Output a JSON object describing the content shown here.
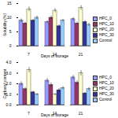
{
  "chart_data": [
    {
      "type": "bar",
      "x_label": "Days of storage",
      "y_label": "Solubility (%)",
      "categories": [
        "7",
        "14",
        "21"
      ],
      "series": [
        {
          "name": "HPC_0",
          "color": "#9999ff",
          "values": [
            9,
            8.5,
            9.5
          ],
          "errors": [
            0.6,
            0.5,
            0.6
          ]
        },
        {
          "name": "HPC_10",
          "color": "#993366",
          "values": [
            8,
            10,
            8
          ],
          "errors": [
            0.5,
            0.6,
            0.5
          ]
        },
        {
          "name": "HPC_20",
          "color": "#ffffcc",
          "values": [
            13,
            12.5,
            13.5
          ],
          "errors": [
            0.8,
            0.7,
            0.8
          ]
        },
        {
          "name": "HPC_30",
          "color": "#333399",
          "values": [
            9,
            7,
            8.5
          ],
          "errors": [
            0.5,
            0.5,
            0.5
          ]
        },
        {
          "name": "Control",
          "color": "#99ccff",
          "values": [
            10,
            9,
            7.5
          ],
          "errors": [
            0.6,
            0.5,
            0.5
          ]
        }
      ],
      "ylim": [
        0,
        15
      ],
      "yticks": [
        0,
        5,
        10,
        15
      ],
      "legend": "right"
    },
    {
      "type": "bar",
      "x_label": "Days of storage",
      "y_label": "Carbonyl content",
      "categories": [
        "7",
        "14",
        "21"
      ],
      "series": [
        {
          "name": "HPC_0",
          "color": "#9999ff",
          "values": [
            2.0,
            2.3,
            2.6
          ],
          "errors": [
            0.2,
            0.2,
            0.2
          ]
        },
        {
          "name": "HPC_10",
          "color": "#993366",
          "values": [
            1.5,
            1.9,
            2.1
          ],
          "errors": [
            0.15,
            0.2,
            0.2
          ]
        },
        {
          "name": "HPC_20",
          "color": "#ffffcc",
          "values": [
            3.3,
            1.0,
            3.0
          ],
          "errors": [
            0.25,
            0.1,
            0.25
          ]
        },
        {
          "name": "HPC_30",
          "color": "#333399",
          "values": [
            1.2,
            1.4,
            1.1
          ],
          "errors": [
            0.1,
            0.15,
            0.1
          ]
        },
        {
          "name": "Control",
          "color": "#99ccff",
          "values": [
            1.0,
            1.6,
            1.5
          ],
          "errors": [
            0.1,
            0.15,
            0.15
          ]
        }
      ],
      "ylim": [
        0,
        4
      ],
      "yticks": [
        0,
        1,
        2,
        3,
        4
      ],
      "legend": "right"
    }
  ]
}
